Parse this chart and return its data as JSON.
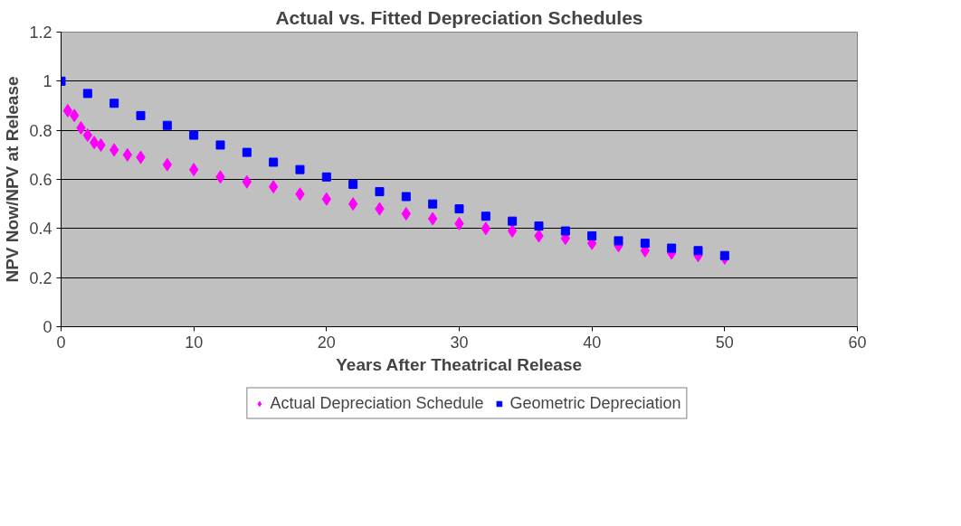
{
  "chart_data": {
    "type": "scatter",
    "title": "Actual vs. Fitted Depreciation Schedules",
    "xlabel": "Years After Theatrical Release",
    "ylabel": "NPV Now/NPV at Release",
    "xlim": [
      0,
      60
    ],
    "xticks": [
      0,
      10,
      20,
      30,
      40,
      50,
      60
    ],
    "ylim": [
      0,
      1.2
    ],
    "yticks": [
      0,
      0.2,
      0.4,
      0.6,
      0.8,
      1,
      1.2
    ],
    "grid": "y",
    "legend": "bottom",
    "series": [
      {
        "name": "Actual Depreciation Schedule",
        "color": "#ff00ff",
        "marker": "diamond",
        "x": [
          0.5,
          1,
          1.5,
          2,
          2.5,
          3,
          4,
          5,
          6,
          8,
          10,
          12,
          14,
          16,
          18,
          20,
          22,
          24,
          26,
          28,
          30,
          32,
          34,
          36,
          38,
          40,
          42,
          44,
          46,
          48,
          50
        ],
        "values": [
          0.88,
          0.86,
          0.81,
          0.78,
          0.75,
          0.74,
          0.72,
          0.7,
          0.69,
          0.66,
          0.64,
          0.61,
          0.59,
          0.57,
          0.54,
          0.52,
          0.5,
          0.48,
          0.46,
          0.44,
          0.42,
          0.4,
          0.39,
          0.37,
          0.36,
          0.34,
          0.33,
          0.31,
          0.3,
          0.29,
          0.28
        ]
      },
      {
        "name": "Geometric Depreciation",
        "color": "#0000ff",
        "marker": "square",
        "x": [
          0,
          2,
          4,
          6,
          8,
          10,
          12,
          14,
          16,
          18,
          20,
          22,
          24,
          26,
          28,
          30,
          32,
          34,
          36,
          38,
          40,
          42,
          44,
          46,
          48,
          50
        ],
        "values": [
          1.0,
          0.95,
          0.91,
          0.86,
          0.82,
          0.78,
          0.74,
          0.71,
          0.67,
          0.64,
          0.61,
          0.58,
          0.55,
          0.53,
          0.5,
          0.48,
          0.45,
          0.43,
          0.41,
          0.39,
          0.37,
          0.35,
          0.34,
          0.32,
          0.31,
          0.29
        ]
      }
    ]
  }
}
